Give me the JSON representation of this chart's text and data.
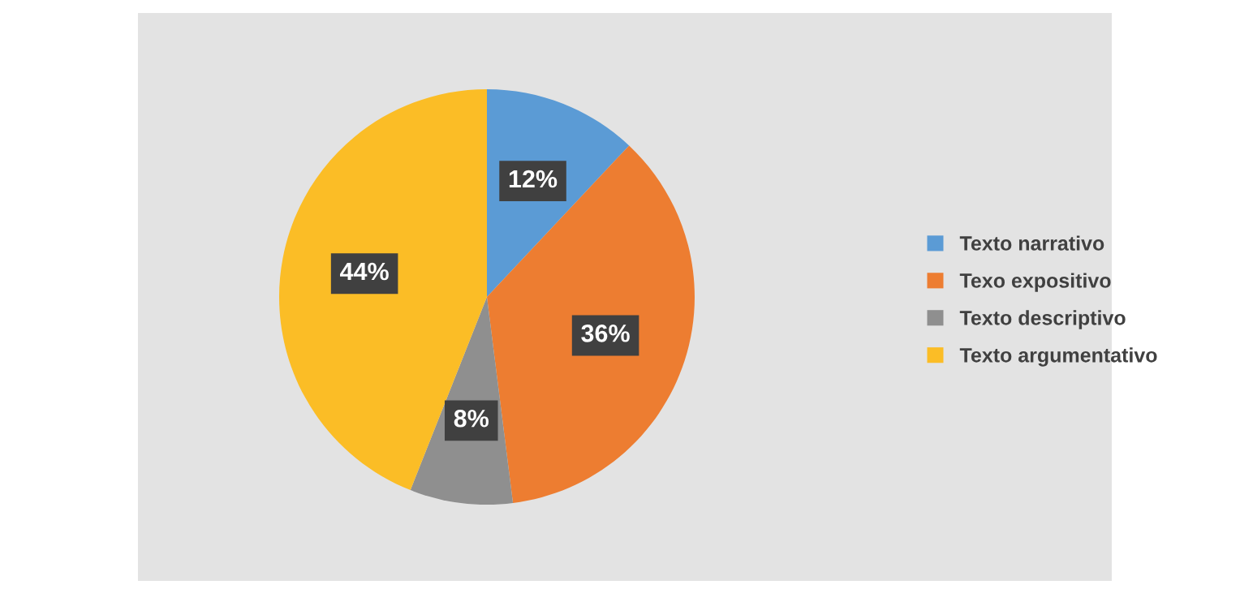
{
  "chart_data": {
    "type": "pie",
    "categories": [
      "Texto narrativo",
      "Texo expositivo",
      "Texto descriptivo",
      "Texto argumentativo"
    ],
    "values": [
      12,
      36,
      8,
      44
    ],
    "colors": [
      "#5b9bd5",
      "#ed7d31",
      "#8f8f8f",
      "#fbbd26"
    ],
    "value_labels": [
      "12%",
      "36%",
      "8%",
      "44%"
    ],
    "legend": "right"
  }
}
